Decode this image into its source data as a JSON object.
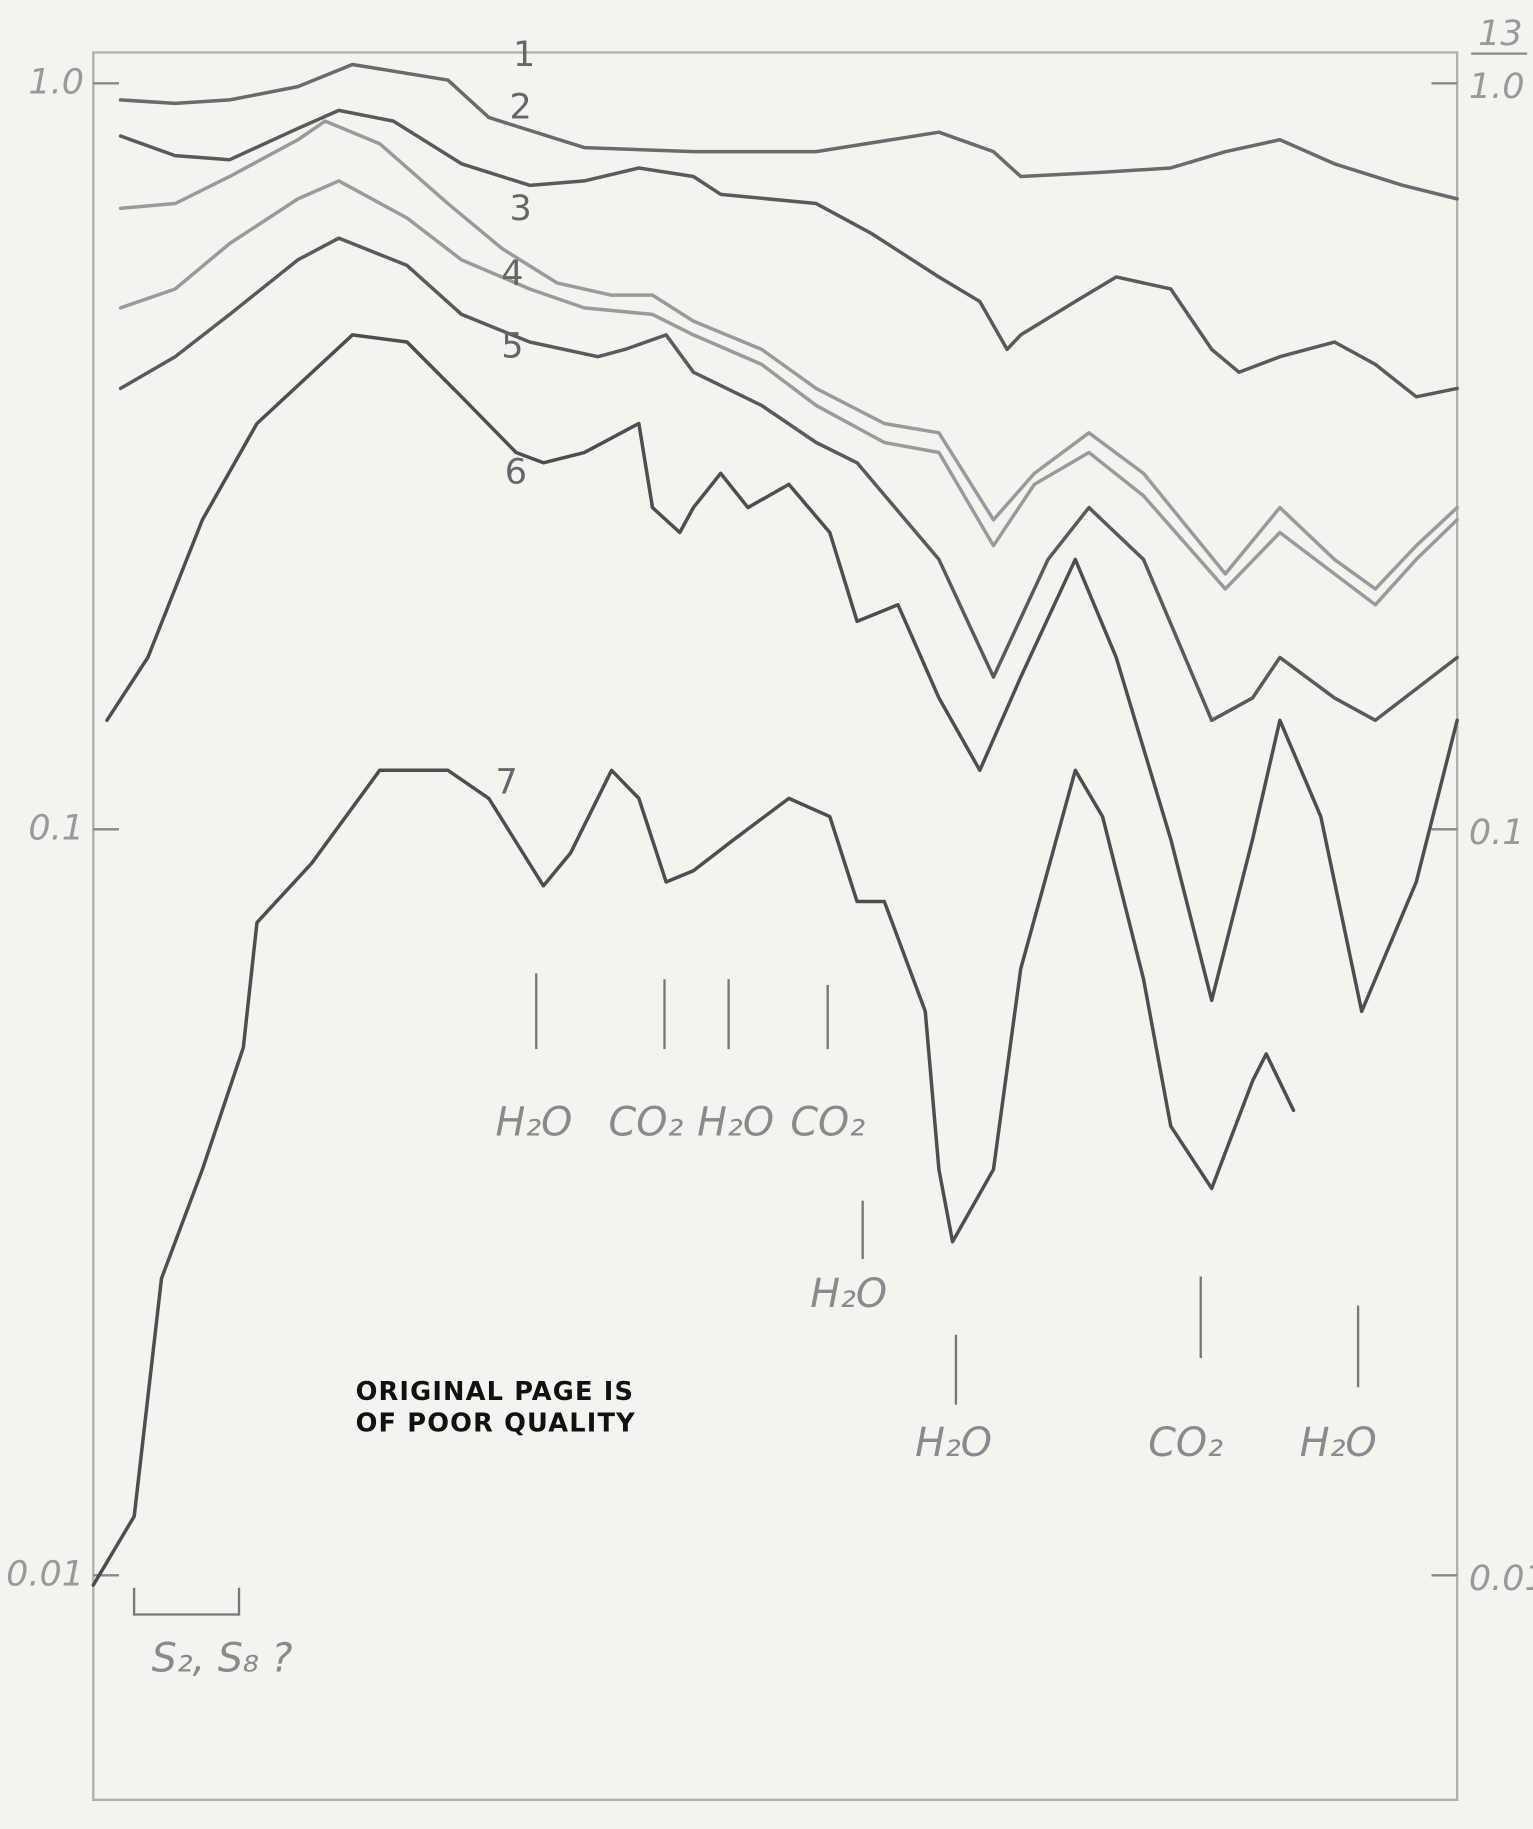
{
  "chart_data": {
    "type": "line",
    "ylog": true,
    "grid": false,
    "xlim": [
      0,
      100
    ],
    "ylim": [
      0.005,
      1.1
    ],
    "yticks": [
      {
        "value": 1,
        "label": "1.0"
      },
      0.1,
      0.01
    ],
    "series": [
      {
        "name": "1",
        "color": "#6a6a6a",
        "x": [
          2,
          6,
          10,
          15,
          19,
          26,
          29,
          36,
          44,
          53,
          62,
          66,
          68,
          74,
          79,
          83,
          87,
          91,
          96,
          100
        ],
        "values": [
          0.95,
          0.94,
          0.95,
          0.99,
          1.06,
          1.01,
          0.9,
          0.82,
          0.81,
          0.81,
          0.86,
          0.81,
          0.75,
          0.76,
          0.77,
          0.81,
          0.84,
          0.78,
          0.73,
          0.7
        ]
      },
      {
        "name": "2",
        "color": "#5a5a5a",
        "x": [
          2,
          6,
          10,
          15,
          18,
          22,
          27,
          32,
          36,
          40,
          44,
          46,
          53,
          57,
          62,
          65,
          67,
          68,
          72,
          75,
          79,
          82,
          84,
          87,
          91,
          94,
          97,
          100
        ],
        "values": [
          0.85,
          0.8,
          0.79,
          0.87,
          0.92,
          0.89,
          0.78,
          0.73,
          0.74,
          0.77,
          0.75,
          0.71,
          0.69,
          0.63,
          0.55,
          0.51,
          0.44,
          0.46,
          0.51,
          0.55,
          0.53,
          0.44,
          0.41,
          0.43,
          0.45,
          0.42,
          0.38,
          0.39
        ]
      },
      {
        "name": "3",
        "color": "#9a9a9a",
        "x": [
          2,
          6,
          10,
          15,
          17,
          21,
          26,
          30,
          34,
          38,
          41,
          44,
          49,
          53,
          58,
          62,
          66,
          69,
          73,
          77,
          83,
          87,
          91,
          94,
          97,
          100
        ],
        "values": [
          0.68,
          0.69,
          0.75,
          0.84,
          0.89,
          0.83,
          0.69,
          0.6,
          0.54,
          0.52,
          0.52,
          0.48,
          0.44,
          0.39,
          0.35,
          0.34,
          0.26,
          0.3,
          0.34,
          0.3,
          0.22,
          0.27,
          0.23,
          0.21,
          0.24,
          0.27
        ]
      },
      {
        "name": "4",
        "color": "#9a9a9a",
        "x": [
          2,
          6,
          10,
          15,
          18,
          23,
          27,
          32,
          36,
          41,
          44,
          49,
          53,
          58,
          62,
          66,
          69,
          73,
          77,
          83,
          87,
          91,
          94,
          97,
          100
        ],
        "values": [
          0.5,
          0.53,
          0.61,
          0.7,
          0.74,
          0.66,
          0.58,
          0.53,
          0.5,
          0.49,
          0.46,
          0.42,
          0.37,
          0.33,
          0.32,
          0.24,
          0.29,
          0.32,
          0.28,
          0.21,
          0.25,
          0.22,
          0.2,
          0.23,
          0.26
        ]
      },
      {
        "name": "5",
        "color": "#5a5a5a",
        "x": [
          2,
          6,
          10,
          15,
          18,
          23,
          27,
          32,
          37,
          39,
          42,
          44,
          49,
          53,
          56,
          62,
          66,
          70,
          73,
          77,
          82,
          85,
          87,
          91,
          94,
          100
        ],
        "values": [
          0.39,
          0.43,
          0.49,
          0.58,
          0.62,
          0.57,
          0.49,
          0.45,
          0.43,
          0.44,
          0.46,
          0.41,
          0.37,
          0.33,
          0.31,
          0.23,
          0.16,
          0.23,
          0.27,
          0.23,
          0.14,
          0.15,
          0.17,
          0.15,
          0.14,
          0.17
        ]
      },
      {
        "name": "6",
        "color": "#4e4e4e",
        "x": [
          1,
          4,
          8,
          12,
          19,
          23,
          27,
          31,
          33,
          36,
          40,
          41,
          43,
          44,
          46,
          48,
          51,
          54,
          56,
          59,
          62,
          65,
          68,
          72,
          75,
          79,
          82,
          85,
          87,
          90,
          93,
          97,
          100
        ],
        "values": [
          0.14,
          0.17,
          0.26,
          0.35,
          0.46,
          0.45,
          0.38,
          0.32,
          0.31,
          0.32,
          0.35,
          0.27,
          0.25,
          0.27,
          0.3,
          0.27,
          0.29,
          0.25,
          0.19,
          0.2,
          0.15,
          0.12,
          0.16,
          0.23,
          0.17,
          0.097,
          0.059,
          0.097,
          0.14,
          0.104,
          0.057,
          0.085,
          0.14
        ]
      },
      {
        "name": "7",
        "color": "#4e4e4e",
        "x": [
          0,
          3,
          5,
          8,
          11,
          12,
          16,
          21,
          26,
          29,
          33,
          35,
          38,
          40,
          42,
          44,
          47,
          51,
          54,
          56,
          58,
          61,
          62,
          63,
          66,
          68,
          72,
          74,
          77,
          79,
          82,
          85,
          86,
          88
        ],
        "values": [
          0.0097,
          0.012,
          0.025,
          0.035,
          0.051,
          0.075,
          0.09,
          0.12,
          0.12,
          0.11,
          0.084,
          0.093,
          0.12,
          0.11,
          0.085,
          0.088,
          0.097,
          0.11,
          0.104,
          0.08,
          0.08,
          0.057,
          0.035,
          0.028,
          0.035,
          0.065,
          0.12,
          0.104,
          0.063,
          0.04,
          0.033,
          0.046,
          0.05,
          0.042
        ]
      }
    ],
    "annotations": [
      "H₂O",
      "CO₂",
      "H₂O",
      "CO₂",
      "H₂O",
      "H₂O",
      "CO₂",
      "H₂O"
    ],
    "bracket_label": "S₂, S₈ ?",
    "stamp": [
      "ORIGINAL PAGE IS",
      "OF POOR QUALITY"
    ],
    "page_number": "13"
  }
}
